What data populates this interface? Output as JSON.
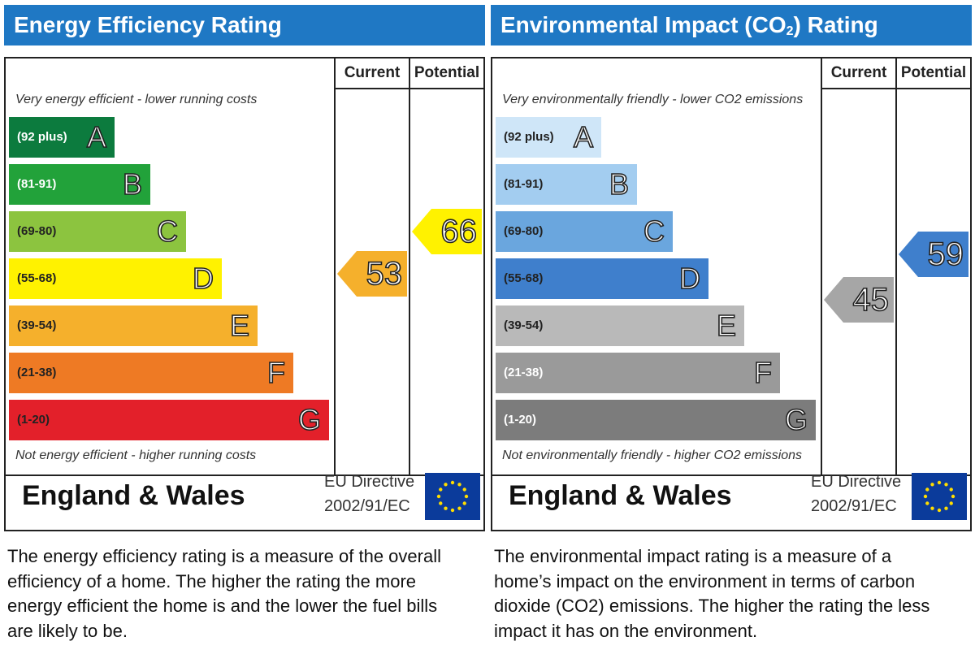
{
  "energy": {
    "title": "Energy Efficiency Rating",
    "col_current": "Current",
    "col_potential": "Potential",
    "top_note": "Very energy efficient - lower running costs",
    "bottom_note": "Not energy efficient - higher running costs",
    "bands": [
      {
        "range": "(92 plus)",
        "letter": "A",
        "color": "#0c7b3e",
        "text_color": "#ffffff"
      },
      {
        "range": "(81-91)",
        "letter": "B",
        "color": "#22a23a",
        "text_color": "#ffffff"
      },
      {
        "range": "(69-80)",
        "letter": "C",
        "color": "#8cc43f",
        "text_color": "#222222"
      },
      {
        "range": "(55-68)",
        "letter": "D",
        "color": "#fff200",
        "text_color": "#222222"
      },
      {
        "range": "(39-54)",
        "letter": "E",
        "color": "#f5b02c",
        "text_color": "#222222"
      },
      {
        "range": "(21-38)",
        "letter": "F",
        "color": "#ee7a24",
        "text_color": "#222222"
      },
      {
        "range": "(1-20)",
        "letter": "G",
        "color": "#e3202a",
        "text_color": "#222222"
      }
    ],
    "current": {
      "value": "53",
      "color": "#f5b02c"
    },
    "potential": {
      "value": "66",
      "color": "#fff200"
    },
    "region": "England & Wales",
    "directive_line1": "EU Directive",
    "directive_line2": "2002/91/EC",
    "description": "The energy efficiency rating is a measure of the overall efficiency of a home. The higher the rating the more energy efficient the home is and the lower the fuel bills are likely to be."
  },
  "environment": {
    "title_prefix": "Environmental Impact (CO",
    "title_sub": "2",
    "title_suffix": ") Rating",
    "col_current": "Current",
    "col_potential": "Potential",
    "top_note": "Very environmentally friendly - lower CO2 emissions",
    "bottom_note": "Not environmentally friendly - higher CO2 emissions",
    "bands": [
      {
        "range": "(92 plus)",
        "letter": "A",
        "color": "#cfe6f8",
        "text_color": "#222222"
      },
      {
        "range": "(81-91)",
        "letter": "B",
        "color": "#a3cdf0",
        "text_color": "#222222"
      },
      {
        "range": "(69-80)",
        "letter": "C",
        "color": "#6aa6de",
        "text_color": "#222222"
      },
      {
        "range": "(55-68)",
        "letter": "D",
        "color": "#3f7fcc",
        "text_color": "#222222"
      },
      {
        "range": "(39-54)",
        "letter": "E",
        "color": "#b9b9b9",
        "text_color": "#222222"
      },
      {
        "range": "(21-38)",
        "letter": "F",
        "color": "#9a9a9a",
        "text_color": "#ffffff"
      },
      {
        "range": "(1-20)",
        "letter": "G",
        "color": "#7c7c7c",
        "text_color": "#ffffff"
      }
    ],
    "current": {
      "value": "45",
      "color": "#a6a6a6"
    },
    "potential": {
      "value": "59",
      "color": "#3f7fcc"
    },
    "region": "England & Wales",
    "directive_line1": "EU Directive",
    "directive_line2": "2002/91/EC",
    "description": "The environmental impact rating is a measure of a home’s impact on the environment in terms of carbon dioxide (CO2) emissions. The higher the rating the less impact it has on the environment."
  },
  "icons": {
    "flag": "eu-flag-icon",
    "flag_color": "#0b3b9b",
    "star_color": "#ffdd00"
  },
  "chart_data": [
    {
      "type": "bar",
      "title": "Energy Efficiency Rating",
      "categories": [
        "A",
        "B",
        "C",
        "D",
        "E",
        "F",
        "G"
      ],
      "ranges": [
        "(92 plus)",
        "(81-91)",
        "(69-80)",
        "(55-68)",
        "(39-54)",
        "(21-38)",
        "(1-20)"
      ],
      "current": 53,
      "potential": 66
    },
    {
      "type": "bar",
      "title": "Environmental Impact (CO2) Rating",
      "categories": [
        "A",
        "B",
        "C",
        "D",
        "E",
        "F",
        "G"
      ],
      "ranges": [
        "(92 plus)",
        "(81-91)",
        "(69-80)",
        "(55-68)",
        "(39-54)",
        "(21-38)",
        "(1-20)"
      ],
      "current": 45,
      "potential": 59
    }
  ]
}
